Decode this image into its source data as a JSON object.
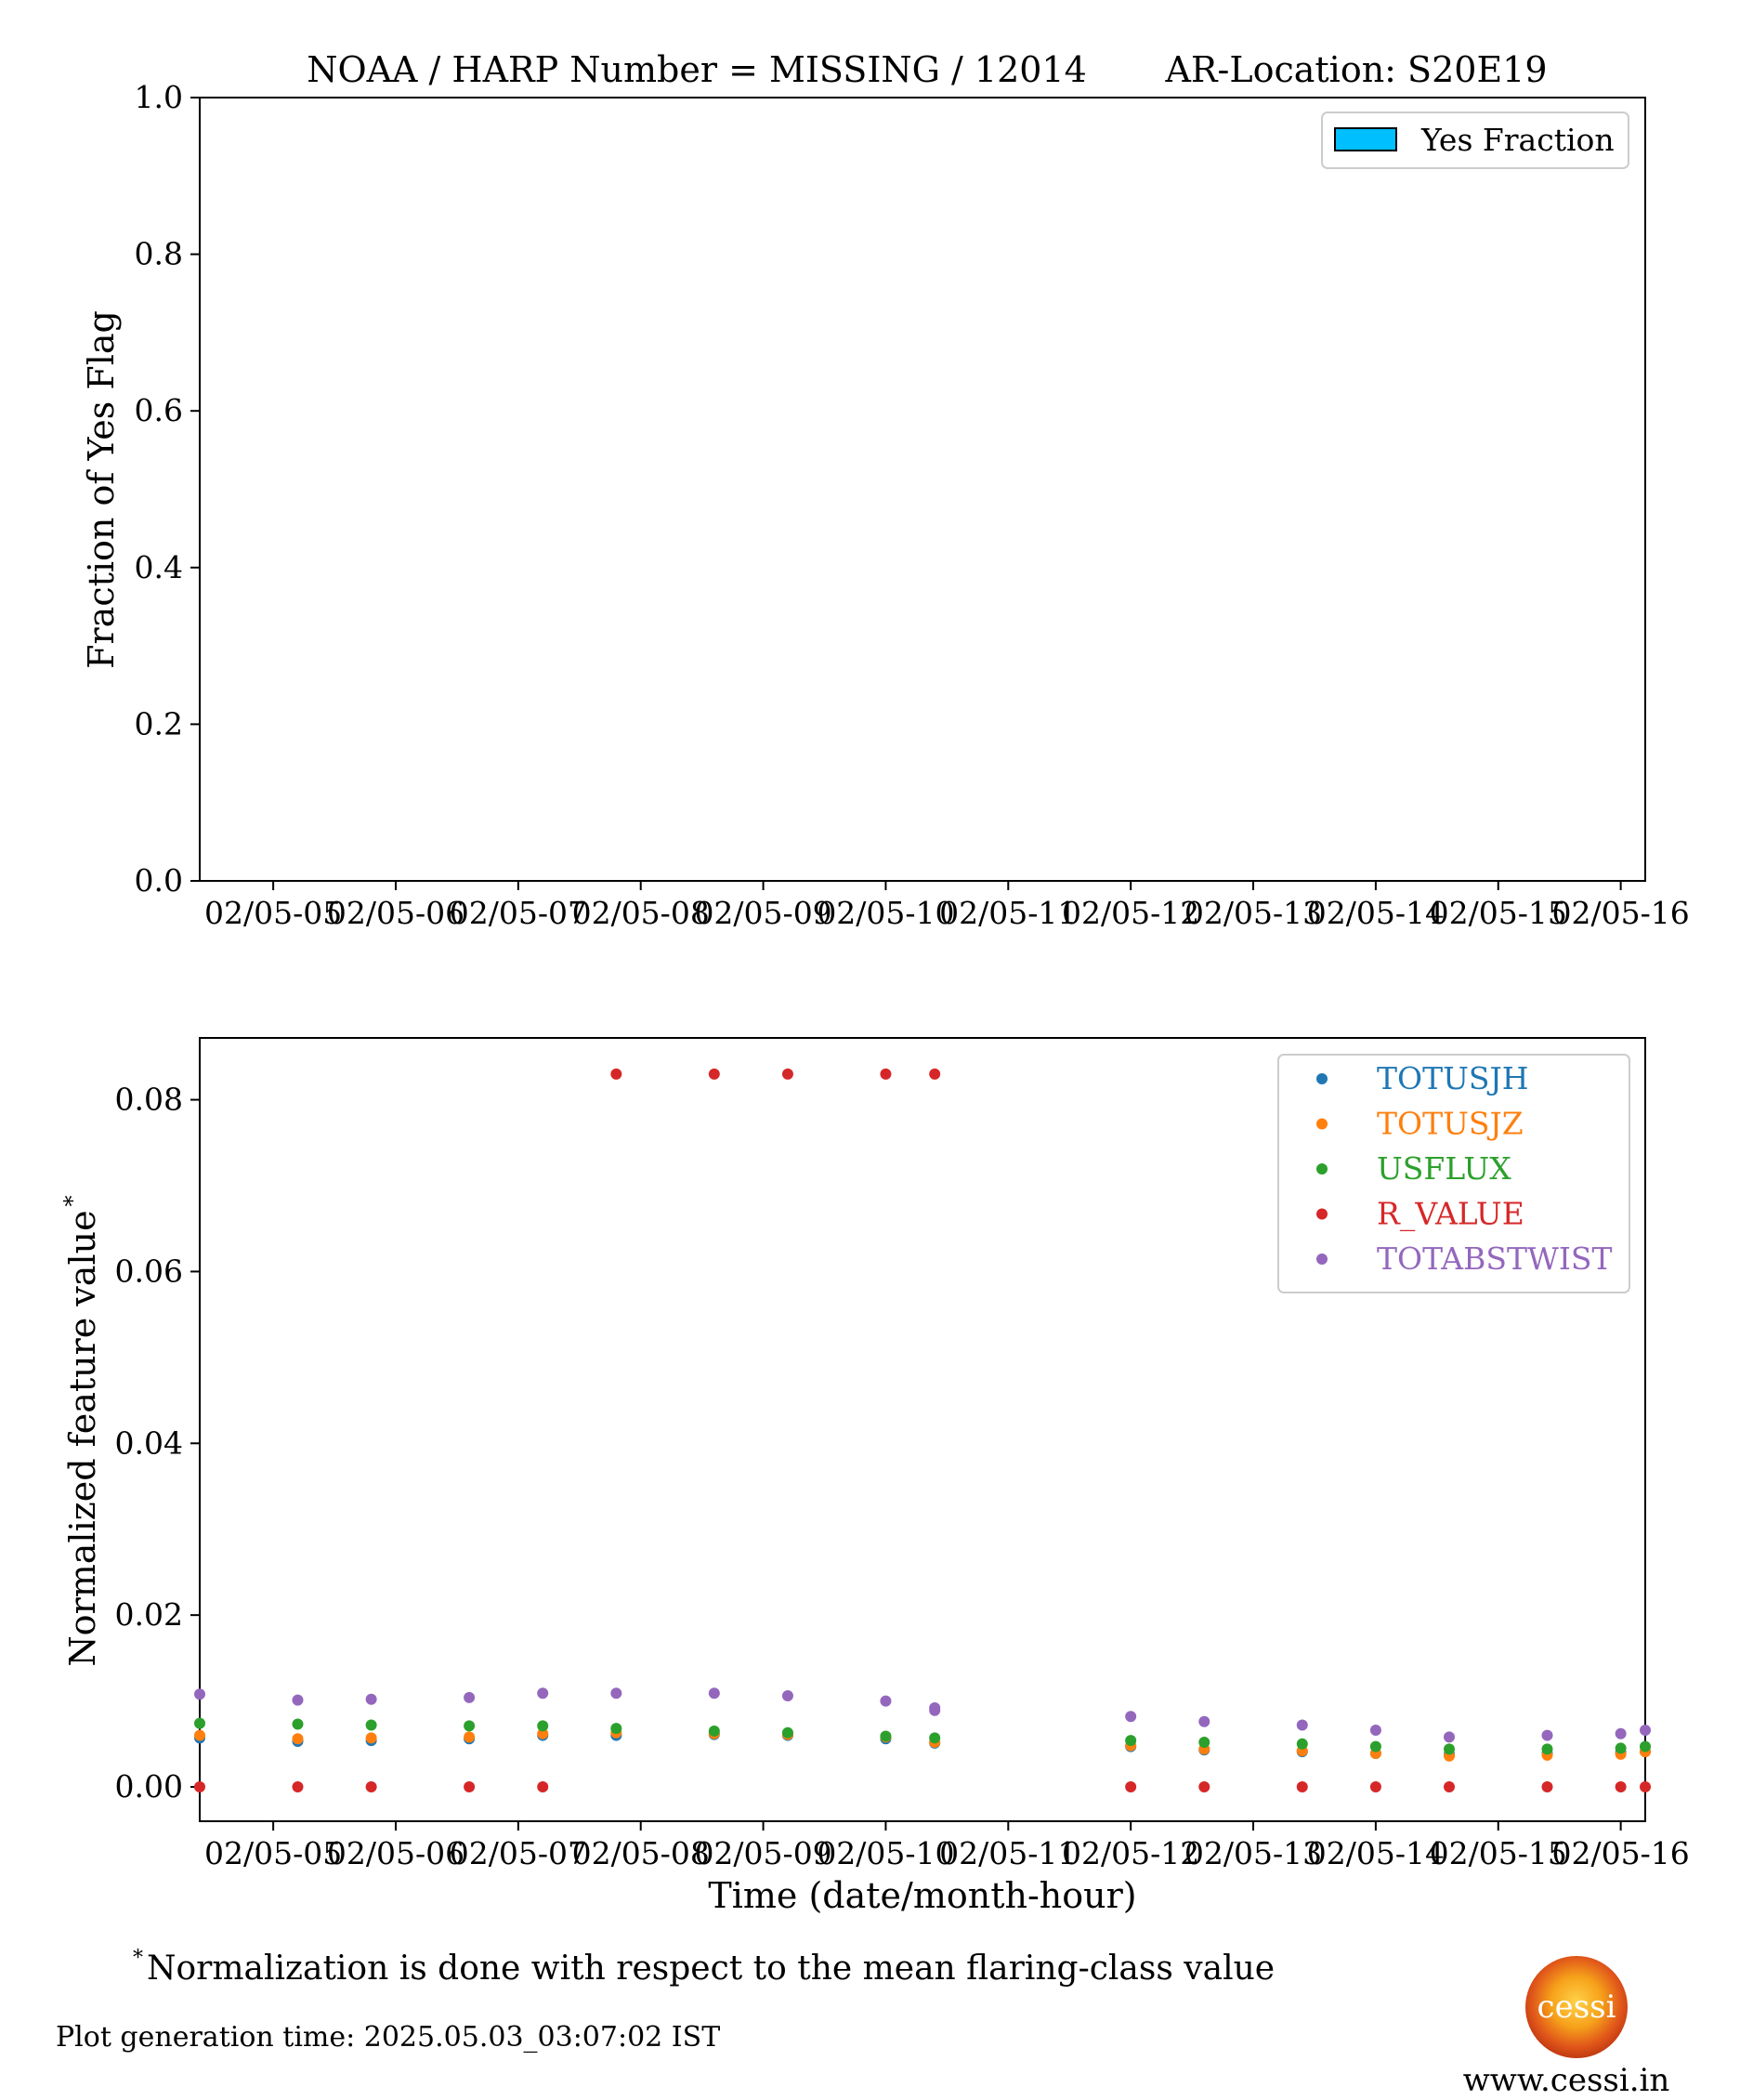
{
  "chart_data": [
    {
      "type": "bar",
      "title": "NOAA / HARP Number = MISSING / 12014",
      "subtitle": "AR-Location: S20E19",
      "xlabel": "",
      "ylabel": "Fraction of Yes Flag",
      "ylim": [
        0,
        1
      ],
      "yticks": [
        "0.0",
        "0.2",
        "0.4",
        "0.6",
        "0.8",
        "1.0"
      ],
      "xticks": [
        "02/05-05",
        "02/05-06",
        "02/05-07",
        "02/05-08",
        "02/05-09",
        "02/05-10",
        "02/05-11",
        "02/05-12",
        "02/05-13",
        "02/05-14",
        "02/05-15",
        "02/05-16"
      ],
      "legend": {
        "placement": "top-right",
        "entries": [
          {
            "name": "Yes Fraction",
            "color": "#00bfff"
          }
        ]
      },
      "series": [
        {
          "name": "Yes Fraction",
          "values": []
        }
      ],
      "grid": false
    },
    {
      "type": "scatter",
      "xlabel": "Time (date/month-hour)",
      "ylabel": "Normalized feature value",
      "ylabel_marker": "*",
      "ylim": [
        -0.004,
        0.0872
      ],
      "yticks": [
        "0.00",
        "0.02",
        "0.04",
        "0.06",
        "0.08"
      ],
      "xticks": [
        "02/05-05",
        "02/05-06",
        "02/05-07",
        "02/05-08",
        "02/05-09",
        "02/05-10",
        "02/05-11",
        "02/05-12",
        "02/05-13",
        "02/05-14",
        "02/05-15",
        "02/05-16"
      ],
      "xlim": [
        "02/05-04:24",
        "02/05-16:12"
      ],
      "legend": {
        "placement": "top-right"
      },
      "grid": false,
      "x": [
        "02/05-04:24",
        "02/05-05:12",
        "02/05-05:48",
        "02/05-06:36",
        "02/05-07:12",
        "02/05-07:48",
        "02/05-08:36",
        "02/05-09:12",
        "02/05-10:00",
        "02/05-10:24",
        "02/05-12:00",
        "02/05-12:36",
        "02/05-13:24",
        "02/05-14:00",
        "02/05-14:36",
        "02/05-15:24",
        "02/05-16:00",
        "02/05-16:12"
      ],
      "series": [
        {
          "name": "TOTUSJH",
          "color": "#1f77b4",
          "values": [
            0.0057,
            0.0053,
            0.0054,
            0.0056,
            0.006,
            0.006,
            0.0061,
            0.006,
            0.0056,
            0.0051,
            0.0047,
            0.0043,
            0.0041,
            0.0039,
            0.0038,
            0.0039,
            0.004,
            0.0041
          ]
        },
        {
          "name": "TOTUSJZ",
          "color": "#ff7f0e",
          "values": [
            0.006,
            0.0056,
            0.0057,
            0.0058,
            0.0062,
            0.0063,
            0.0062,
            0.0061,
            0.0058,
            0.0052,
            0.0048,
            0.0044,
            0.0042,
            0.0039,
            0.0036,
            0.0037,
            0.0038,
            0.0041
          ]
        },
        {
          "name": "USFLUX",
          "color": "#2ca02c",
          "values": [
            0.0074,
            0.0073,
            0.0072,
            0.0071,
            0.0071,
            0.0068,
            0.0065,
            0.0063,
            0.0059,
            0.0057,
            0.0054,
            0.0052,
            0.005,
            0.0047,
            0.0044,
            0.0044,
            0.0045,
            0.0047
          ]
        },
        {
          "name": "R_VALUE",
          "color": "#d62728",
          "values": [
            0,
            0,
            0,
            0,
            0,
            0.083,
            0.083,
            0.083,
            0.083,
            0.083,
            0,
            0,
            0,
            0,
            0,
            0,
            0,
            0
          ]
        },
        {
          "name": "TOTABSTWIST",
          "color": "#9467bd",
          "values": [
            0.0108,
            0.0101,
            0.0102,
            0.0104,
            0.0109,
            0.0109,
            0.0109,
            0.0106,
            0.01,
            0.0089,
            0.0082,
            0.0076,
            0.0072,
            0.0066,
            0.0058,
            0.006,
            0.0062,
            0.0066
          ]
        }
      ],
      "extra_points": [
        {
          "series": "TOTABSTWIST",
          "x": "02/05-10:24",
          "y": 0.0092
        }
      ]
    }
  ],
  "footnote": {
    "marker": "*",
    "text": "Normalization is done with respect to the mean flaring-class value"
  },
  "generation_time": "Plot generation time: 2025.05.03_03:07:02 IST",
  "logo": {
    "text": "cessi"
  },
  "website": "www.cessi.in"
}
